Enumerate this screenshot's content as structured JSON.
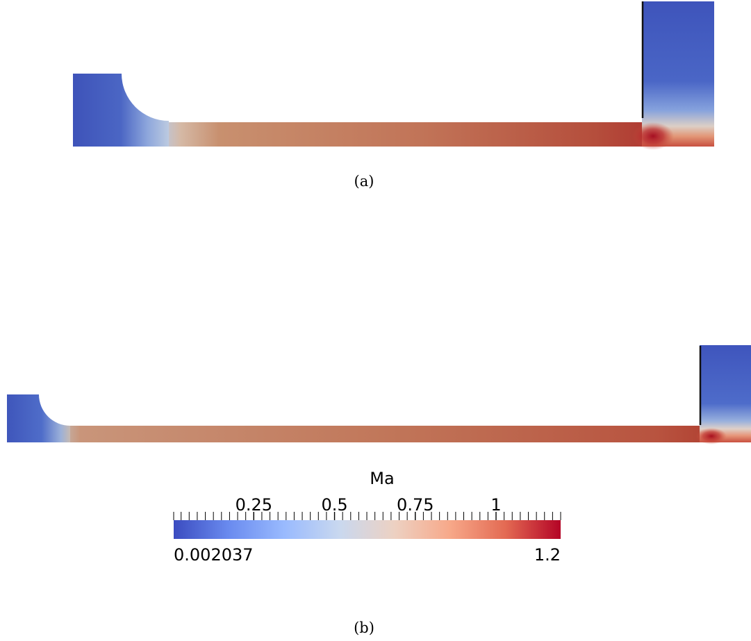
{
  "panels": [
    {
      "id": "a",
      "caption": "(a)"
    },
    {
      "id": "b",
      "caption": "(b)"
    }
  ],
  "colorbar": {
    "title": "Ma",
    "min_label": "0.002037",
    "max_label": "1.2",
    "range": [
      0.002037,
      1.2
    ],
    "major_ticks": [
      {
        "value": 0.25,
        "label": "0.25"
      },
      {
        "value": 0.5,
        "label": "0.5"
      },
      {
        "value": 0.75,
        "label": "0.75"
      },
      {
        "value": 1.0,
        "label": "1"
      }
    ],
    "minor_tick_step": 0.025,
    "colormap": "cool-to-warm",
    "colors": [
      "#3b4cc0",
      "#6a8bef",
      "#99bafe",
      "#c9d8ef",
      "#edd1c2",
      "#f7a889",
      "#e36a53",
      "#b40426"
    ]
  }
}
